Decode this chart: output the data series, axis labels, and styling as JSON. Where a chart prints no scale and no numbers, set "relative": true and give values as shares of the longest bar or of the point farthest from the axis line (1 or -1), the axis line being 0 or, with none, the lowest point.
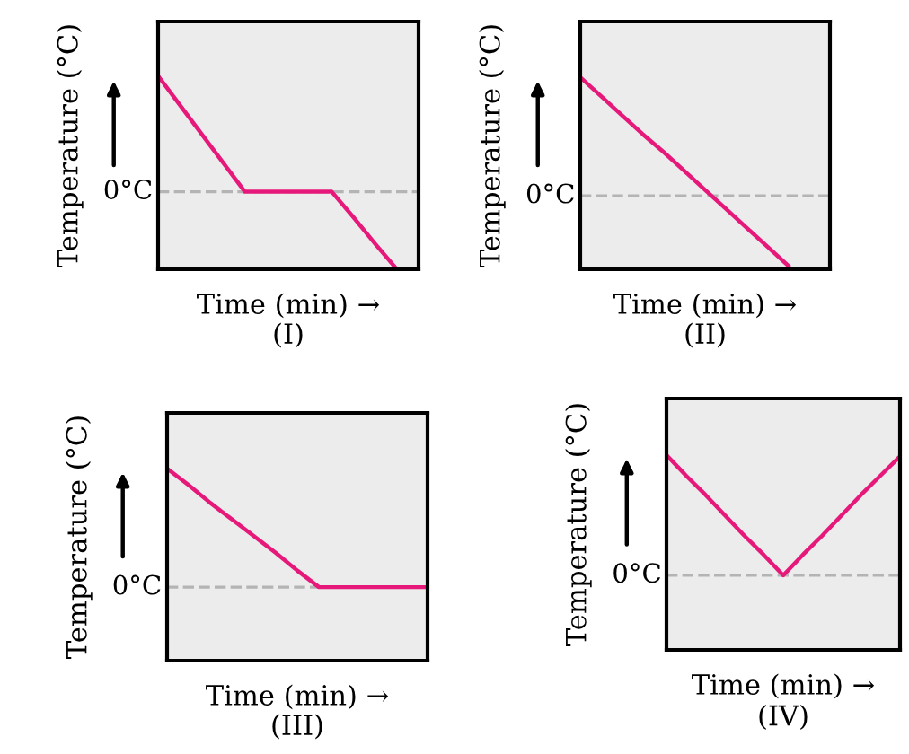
{
  "chart_data": [
    {
      "type": "line",
      "title": "(I)",
      "xlabel": "Time (min) →",
      "ylabel": "Temperature (°C)",
      "relative": true,
      "categories": [
        null,
        null,
        null,
        null,
        null,
        null,
        null,
        null,
        null,
        null,
        null,
        null,
        null
      ],
      "series": [
        {
          "color": "#e6197a",
          "values": [
            1,
            0.75,
            0.5,
            0.25,
            0,
            0,
            0,
            0,
            0,
            -0.22,
            -0.45,
            -0.67,
            null
          ]
        }
      ],
      "ref_lines": [
        {
          "axis": "y",
          "value": 0,
          "label": "0°C",
          "color": "#b4b4b4",
          "line_style": "dashed"
        }
      ]
    },
    {
      "type": "line",
      "title": "(II)",
      "xlabel": "Time (min) →",
      "ylabel": "Temperature (°C)",
      "relative": true,
      "categories": [
        null,
        null,
        null,
        null,
        null,
        null,
        null,
        null,
        null,
        null,
        null,
        null,
        null
      ],
      "series": [
        {
          "color": "#e6197a",
          "values": [
            1,
            0.84,
            0.68,
            0.52,
            0.37,
            0.21,
            0.05,
            -0.11,
            -0.27,
            -0.43,
            -0.59,
            null,
            null
          ]
        }
      ],
      "ref_lines": [
        {
          "axis": "y",
          "value": 0,
          "label": "0°C",
          "color": "#b4b4b4",
          "line_style": "dashed"
        }
      ]
    },
    {
      "type": "line",
      "title": "(III)",
      "xlabel": "Time (min) →",
      "ylabel": "Temperature (°C)",
      "relative": true,
      "categories": [
        null,
        null,
        null,
        null,
        null,
        null,
        null,
        null,
        null,
        null,
        null,
        null,
        null
      ],
      "series": [
        {
          "color": "#e6197a",
          "values": [
            1,
            0.86,
            0.71,
            0.57,
            0.43,
            0.29,
            0.14,
            0,
            0,
            0,
            0,
            0,
            0
          ]
        }
      ],
      "ref_lines": [
        {
          "axis": "y",
          "value": 0,
          "label": "0°C",
          "color": "#b4b4b4",
          "line_style": "dashed"
        }
      ]
    },
    {
      "type": "line",
      "title": "(IV)",
      "xlabel": "Time (min) →",
      "ylabel": "Temperature (°C)",
      "relative": true,
      "categories": [
        null,
        null,
        null,
        null,
        null,
        null,
        null,
        null,
        null,
        null,
        null,
        null,
        null
      ],
      "series": [
        {
          "color": "#e6197a",
          "values": [
            1,
            0.83,
            0.67,
            0.5,
            0.33,
            0.17,
            0,
            0.17,
            0.33,
            0.5,
            0.67,
            0.83,
            0.99
          ]
        }
      ],
      "ref_lines": [
        {
          "axis": "y",
          "value": 0,
          "label": "0°C",
          "color": "#b4b4b4",
          "line_style": "dashed"
        }
      ]
    }
  ]
}
